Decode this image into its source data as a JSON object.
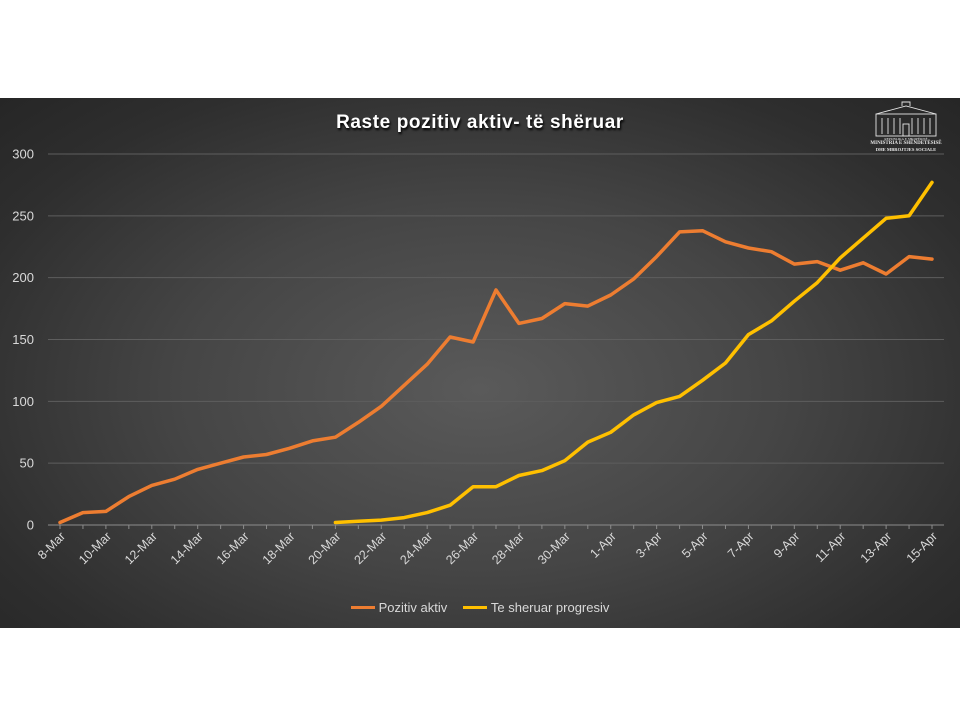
{
  "chart_data": {
    "type": "line",
    "title": "Raste pozitiv aktiv- të shëruar",
    "xlabel": "",
    "ylabel": "",
    "ylim": [
      0,
      300
    ],
    "yticks": [
      0,
      50,
      100,
      150,
      200,
      250,
      300
    ],
    "grid": true,
    "legend_position": "bottom",
    "x": [
      "8-Mar",
      "9-Mar",
      "10-Mar",
      "11-Mar",
      "12-Mar",
      "13-Mar",
      "14-Mar",
      "15-Mar",
      "16-Mar",
      "17-Mar",
      "18-Mar",
      "19-Mar",
      "20-Mar",
      "21-Mar",
      "22-Mar",
      "23-Mar",
      "24-Mar",
      "25-Mar",
      "26-Mar",
      "27-Mar",
      "28-Mar",
      "29-Mar",
      "30-Mar",
      "31-Mar",
      "1-Apr",
      "2-Apr",
      "3-Apr",
      "4-Apr",
      "5-Apr",
      "6-Apr",
      "7-Apr",
      "8-Apr",
      "9-Apr",
      "10-Apr",
      "11-Apr",
      "12-Apr",
      "13-Apr",
      "14-Apr",
      "15-Apr"
    ],
    "x_tick_labels": [
      "8-Mar",
      "10-Mar",
      "12-Mar",
      "14-Mar",
      "16-Mar",
      "18-Mar",
      "20-Mar",
      "22-Mar",
      "24-Mar",
      "26-Mar",
      "28-Mar",
      "30-Mar",
      "1-Apr",
      "3-Apr",
      "5-Apr",
      "7-Apr",
      "9-Apr",
      "11-Apr",
      "13-Apr",
      "15-Apr"
    ],
    "series": [
      {
        "name": "Pozitiv aktiv",
        "color": "#ed7d31",
        "values": [
          2,
          10,
          11,
          23,
          32,
          37,
          45,
          50,
          55,
          57,
          62,
          68,
          71,
          83,
          96,
          113,
          130,
          152,
          148,
          190,
          163,
          167,
          179,
          177,
          186,
          199,
          217,
          237,
          238,
          229,
          224,
          221,
          211,
          213,
          206,
          212,
          203,
          217,
          215
        ]
      },
      {
        "name": "Te sheruar progresiv",
        "color": "#ffc000",
        "values": [
          null,
          null,
          null,
          null,
          null,
          null,
          null,
          null,
          null,
          null,
          null,
          null,
          2,
          3,
          4,
          6,
          10,
          16,
          31,
          31,
          40,
          44,
          52,
          67,
          75,
          89,
          99,
          104,
          117,
          131,
          154,
          165,
          181,
          196,
          216,
          232,
          248,
          250,
          277
        ]
      }
    ]
  },
  "logo": {
    "line1": "REPUBLIKA E SHQIPËRISË",
    "line2": "MINISTRIA E SHËNDETËSISË",
    "line3": "DHE MBROJTJES SOCIALE"
  },
  "colors": {
    "panel_background": "#3c3c3c",
    "gridline": "#5e5e5e",
    "axis_text": "#d9d9d9",
    "title_text": "#ffffff"
  }
}
